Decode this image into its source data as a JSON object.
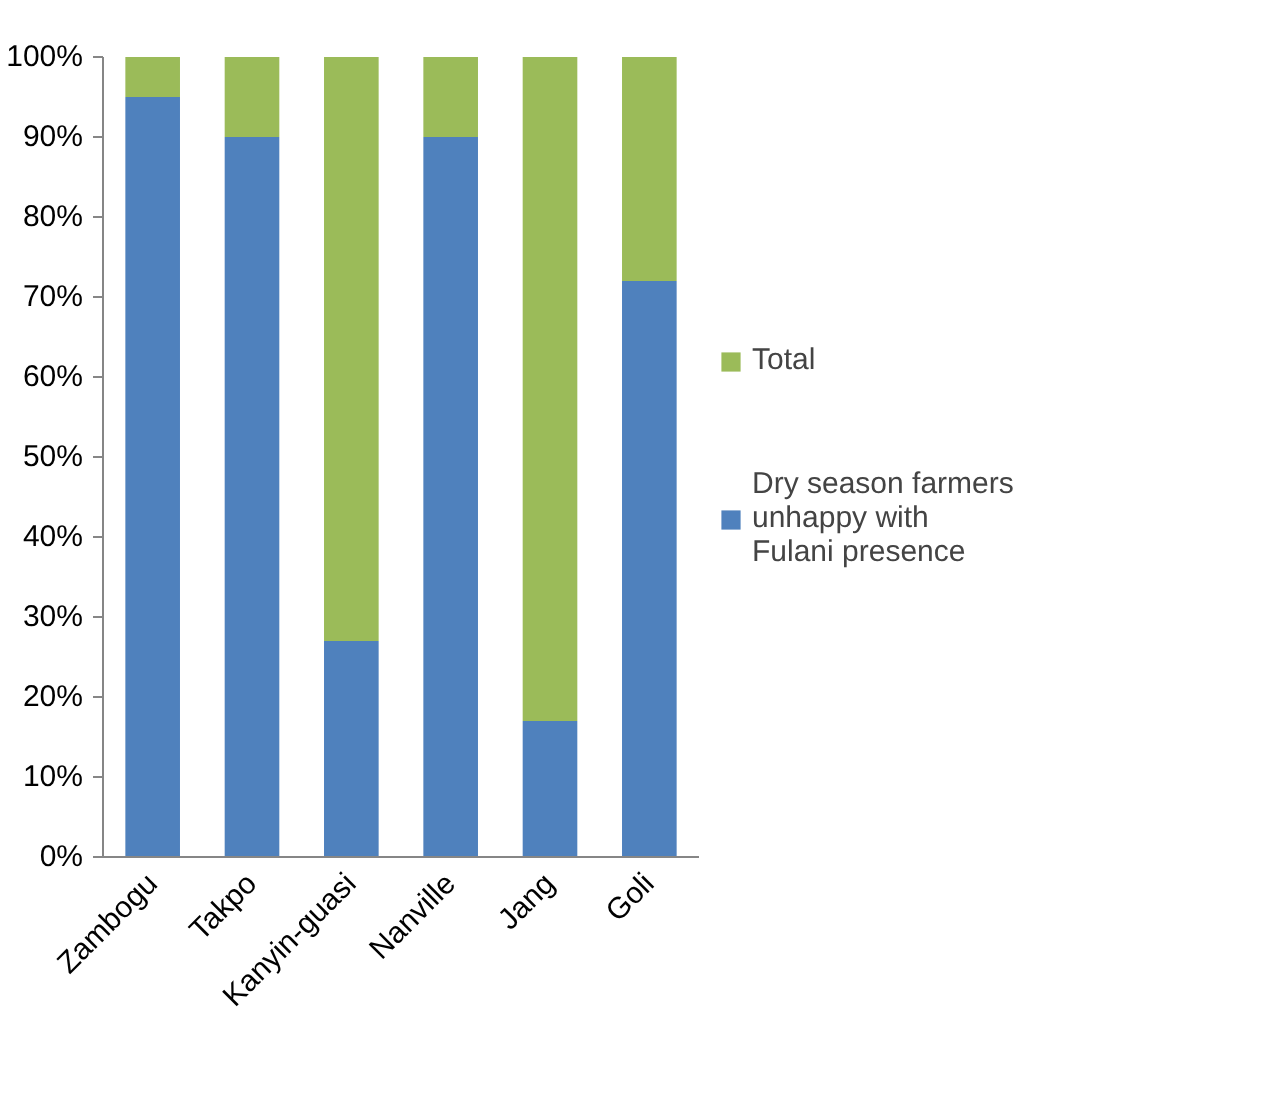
{
  "chart_data": {
    "type": "bar",
    "stacked": true,
    "categories": [
      "Zambogu",
      "Takpo",
      "Kanyin-guasi",
      "Nanville",
      "Jang",
      "Goli"
    ],
    "series": [
      {
        "name": "Dry season farmers unhappy with Fulani presence",
        "color": "#4f81bd",
        "values": [
          95,
          90,
          27,
          90,
          17,
          72
        ]
      },
      {
        "name": "Total",
        "color": "#9bbb59",
        "values": [
          5,
          10,
          73,
          10,
          83,
          28
        ]
      }
    ],
    "ylim": [
      0,
      100
    ],
    "yticks": [
      {
        "value": 0,
        "label": "0%"
      },
      {
        "value": 10,
        "label": "10%"
      },
      {
        "value": 20,
        "label": "20%"
      },
      {
        "value": 30,
        "label": "30%"
      },
      {
        "value": 40,
        "label": "40%"
      },
      {
        "value": 50,
        "label": "50%"
      },
      {
        "value": 60,
        "label": "60%"
      },
      {
        "value": 70,
        "label": "70%"
      },
      {
        "value": 80,
        "label": "80%"
      },
      {
        "value": 90,
        "label": "90%"
      },
      {
        "value": 100,
        "label": "100%"
      }
    ],
    "grid": false,
    "legend": "right"
  }
}
